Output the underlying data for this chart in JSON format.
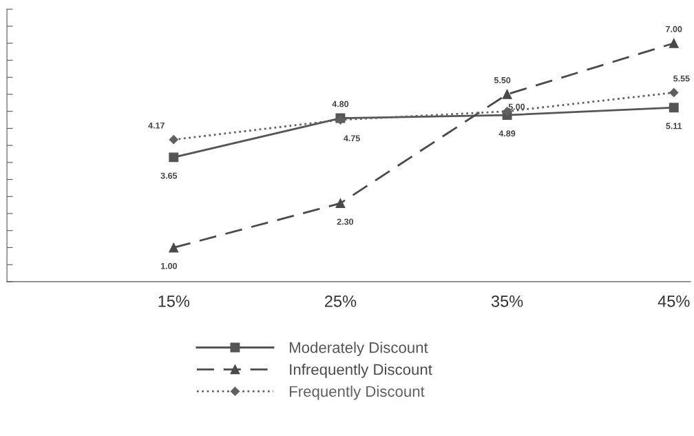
{
  "chart_data": {
    "type": "line",
    "categories": [
      "15%",
      "25%",
      "35%",
      "45%"
    ],
    "series": [
      {
        "name": "Moderately Discount",
        "color": "#555555",
        "marker": "square",
        "line_style": "solid",
        "values": [
          3.65,
          4.8,
          4.89,
          5.11
        ],
        "value_labels": [
          "3.65",
          "4.80",
          "4.89",
          "5.11"
        ]
      },
      {
        "name": "Infrequently Discount",
        "color": "#4a4a4a",
        "marker": "triangle",
        "line_style": "dashed",
        "values": [
          1.0,
          2.3,
          5.5,
          7.0
        ],
        "value_labels": [
          "1.00",
          "2.30",
          "5.50",
          "7.00"
        ]
      },
      {
        "name": "Frequently Discount",
        "color": "#606060",
        "marker": "diamond",
        "line_style": "dotted",
        "values": [
          4.17,
          4.75,
          5.0,
          5.55
        ],
        "value_labels": [
          "4.17",
          "4.75",
          "5.00",
          "5.55"
        ]
      }
    ],
    "relative": false,
    "ylim": [
      0,
      8
    ],
    "yticks": [
      {
        "value": 0,
        "label": null
      },
      {
        "value": 0.5,
        "label": null
      },
      {
        "value": 1,
        "label": null
      },
      {
        "value": 1.5,
        "label": null
      },
      {
        "value": 2,
        "label": null
      },
      {
        "value": 2.5,
        "label": null
      },
      {
        "value": 3,
        "label": null
      },
      {
        "value": 3.5,
        "label": null
      },
      {
        "value": 4,
        "label": null
      },
      {
        "value": 4.5,
        "label": null
      },
      {
        "value": 5,
        "label": null
      },
      {
        "value": 5.5,
        "label": null
      },
      {
        "value": 6,
        "label": null
      },
      {
        "value": 6.5,
        "label": null
      },
      {
        "value": 7,
        "label": null
      },
      {
        "value": 7.5,
        "label": null
      },
      {
        "value": 8,
        "label": null
      }
    ],
    "tick_labels": "x",
    "grid": false,
    "legend": "bottom"
  }
}
